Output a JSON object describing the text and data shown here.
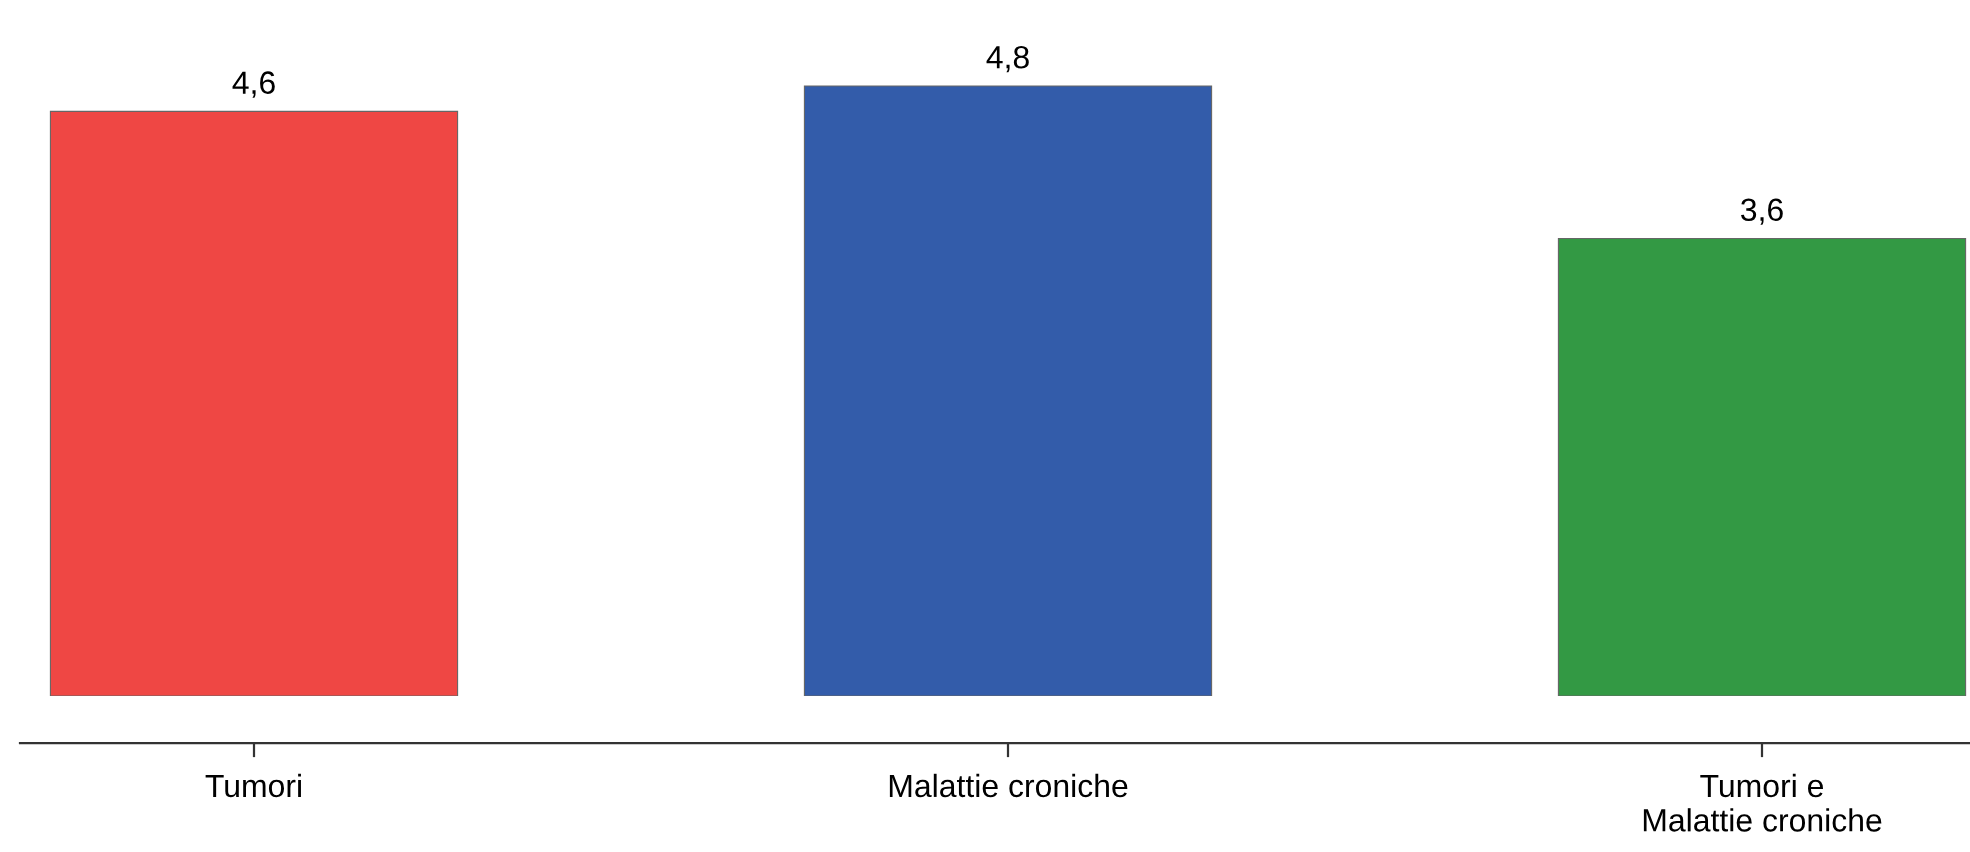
{
  "chart_data": {
    "type": "bar",
    "categories": [
      "Tumori",
      "Malattie croniche",
      "Tumori e\nMalattie croniche"
    ],
    "values": [
      4.6,
      4.8,
      3.6
    ],
    "colors": [
      "#ef4744",
      "#335caa",
      "#339944"
    ],
    "value_labels": [
      "4,6",
      "4,8",
      "3,6"
    ],
    "grid": false,
    "legend": false
  }
}
